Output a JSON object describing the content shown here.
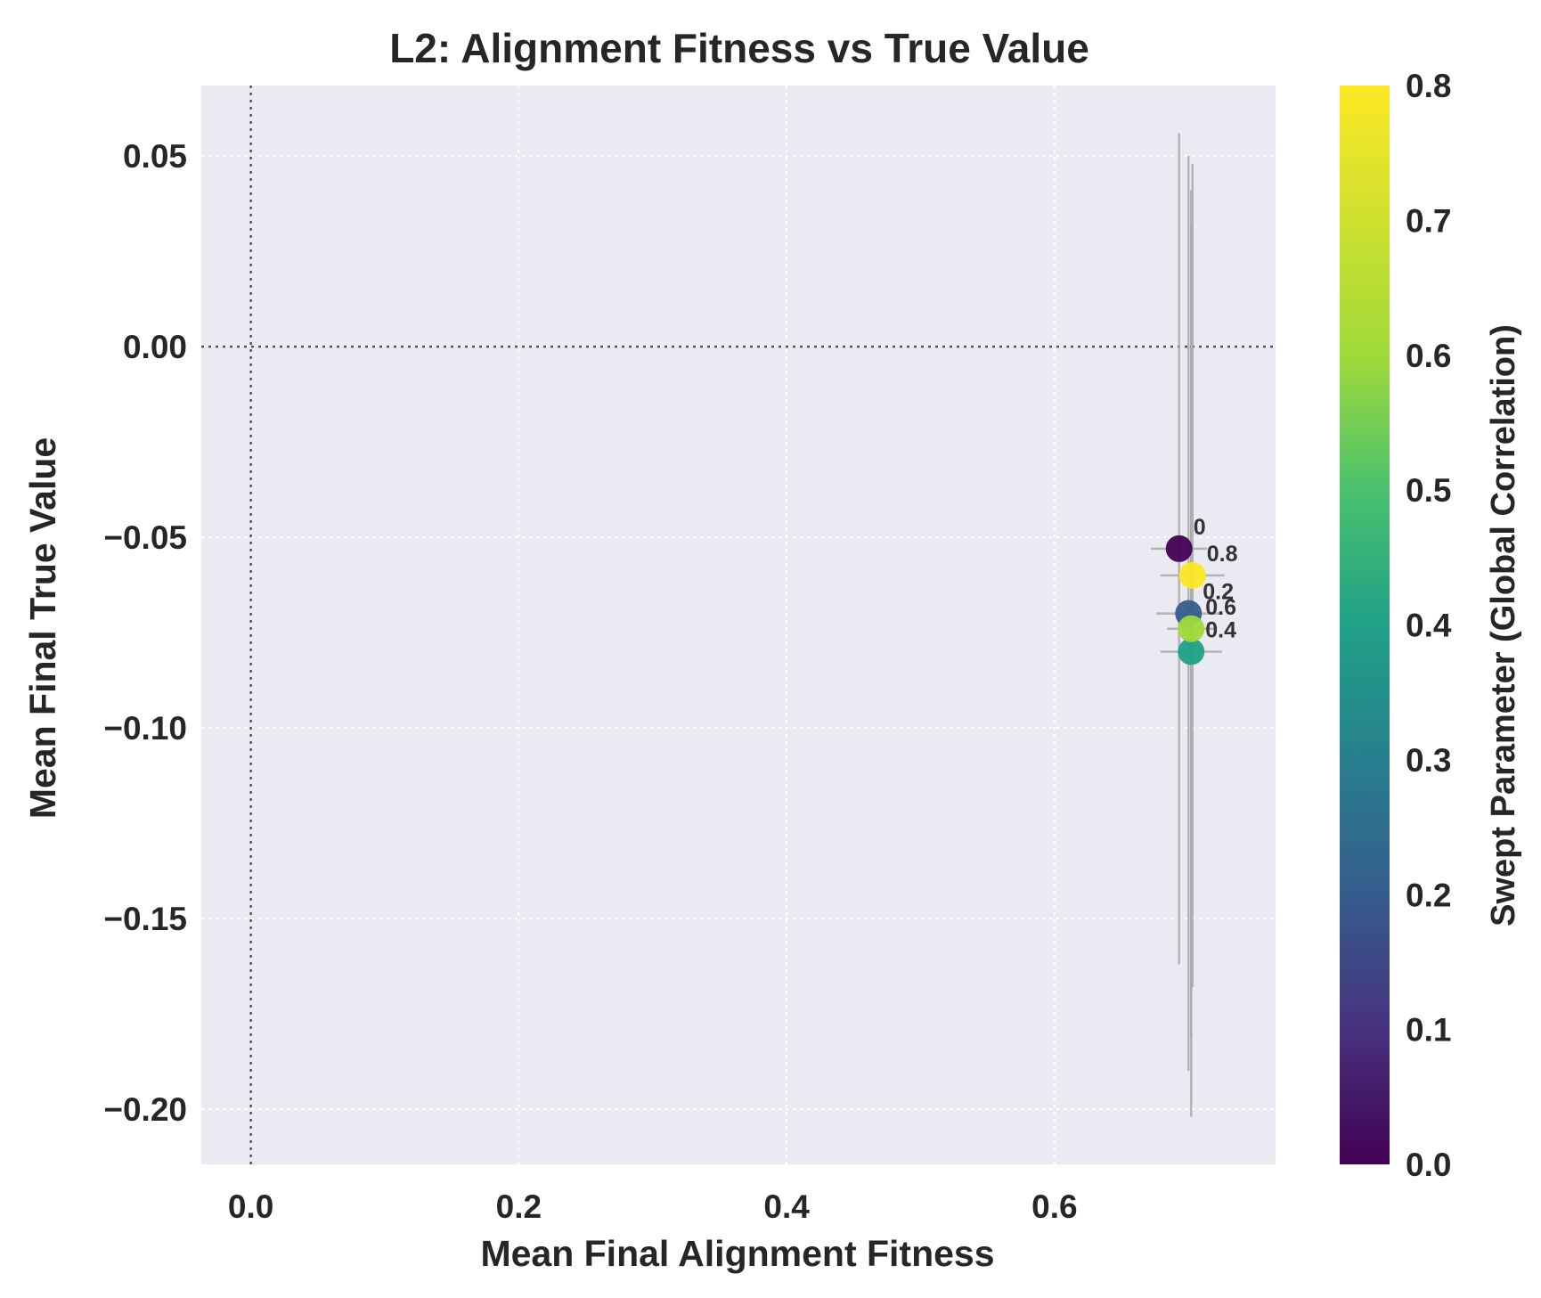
{
  "chart_data": {
    "type": "scatter",
    "title": "L2: Alignment Fitness vs True Value",
    "xlabel": "Mean Final Alignment Fitness",
    "ylabel": "Mean Final True Value",
    "xlim": [
      -0.037,
      0.765
    ],
    "ylim": [
      -0.2145,
      0.0685
    ],
    "x_ticks": [
      0.0,
      0.2,
      0.4,
      0.6
    ],
    "x_tick_labels": [
      "0.0",
      "0.2",
      "0.4",
      "0.6"
    ],
    "y_ticks": [
      0.05,
      0.0,
      -0.05,
      -0.1,
      -0.15,
      -0.2
    ],
    "y_tick_labels": [
      "0.05",
      "0.00",
      "−0.05",
      "−0.10",
      "−0.15",
      "−0.20"
    ],
    "grid": true,
    "reference_lines": {
      "x": 0,
      "y": 0
    },
    "points": [
      {
        "label": "0",
        "param": 0.0,
        "x": 0.693,
        "y": -0.053,
        "xerr": 0.021,
        "y_low": -0.162,
        "y_high": 0.056
      },
      {
        "label": "0.2",
        "param": 0.2,
        "x": 0.7,
        "y": -0.07,
        "xerr": 0.024,
        "y_low": -0.19,
        "y_high": 0.05
      },
      {
        "label": "0.4",
        "param": 0.4,
        "x": 0.702,
        "y": -0.08,
        "xerr": 0.023,
        "y_low": -0.202,
        "y_high": 0.032
      },
      {
        "label": "0.6",
        "param": 0.6,
        "x": 0.702,
        "y": -0.074,
        "xerr": 0.018,
        "y_low": -0.181,
        "y_high": 0.041
      },
      {
        "label": "0.8",
        "param": 0.8,
        "x": 0.703,
        "y": -0.06,
        "xerr": 0.024,
        "y_low": -0.168,
        "y_high": 0.048
      }
    ],
    "colorbar": {
      "label": "Swept Parameter (Global Correlation)",
      "colormap": "viridis",
      "range": [
        0.0,
        0.8
      ],
      "ticks": [
        0.0,
        0.1,
        0.2,
        0.3,
        0.4,
        0.5,
        0.6,
        0.7,
        0.8
      ],
      "tick_labels": [
        "0.0",
        "0.1",
        "0.2",
        "0.3",
        "0.4",
        "0.5",
        "0.6",
        "0.7",
        "0.8"
      ]
    },
    "colors": {
      "axes_background": "#eaeaf2",
      "grid": "#ffffff",
      "reference_line": "#555555",
      "error_bar": "#aaaaaa",
      "text": "#262626"
    }
  }
}
